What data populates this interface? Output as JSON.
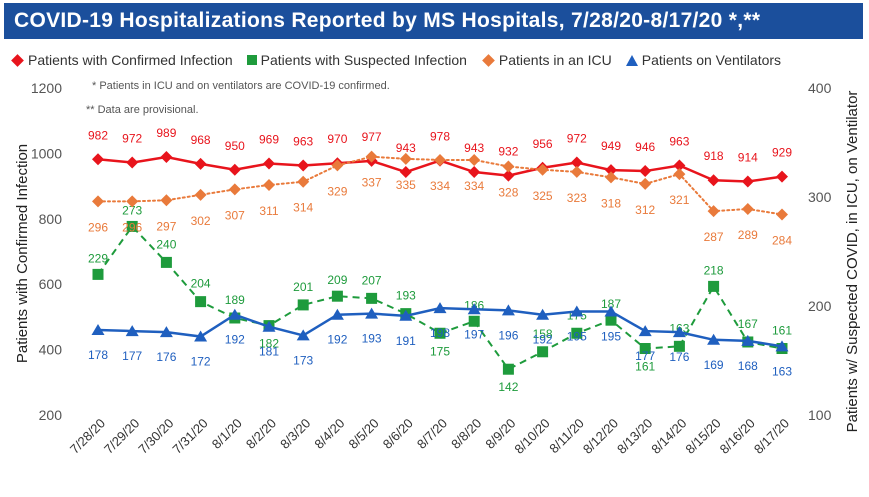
{
  "title": "COVID-19 Hospitalizations Reported by MS Hospitals, 7/28/20-8/17/20 *,**",
  "notes": [
    "* Patients in ICU and on ventilators are COVID-19 confirmed.",
    "** Data are provisional."
  ],
  "legend": [
    {
      "label": "Patients with Confirmed Infection",
      "color": "#e8141c",
      "marker": "diamond"
    },
    {
      "label": "Patients with Suspected Infection",
      "color": "#1e9b3c",
      "marker": "square"
    },
    {
      "label": "Patients in an ICU",
      "color": "#e97a3b",
      "marker": "diamond"
    },
    {
      "label": "Patients on Ventilators",
      "color": "#1f5fbf",
      "marker": "triangle"
    }
  ],
  "chart_data": {
    "type": "line",
    "title": "COVID-19 Hospitalizations Reported by MS Hospitals, 7/28/20-8/17/20 *,**",
    "categories": [
      "7/28/20",
      "7/29/20",
      "7/30/20",
      "7/31/20",
      "8/1/20",
      "8/2/20",
      "8/3/20",
      "8/4/20",
      "8/5/20",
      "8/6/20",
      "8/7/20",
      "8/8/20",
      "8/9/20",
      "8/10/20",
      "8/11/20",
      "8/12/20",
      "8/13/20",
      "8/14/20",
      "8/15/20",
      "8/16/20",
      "8/17/20"
    ],
    "ylabel": "Patients with Confirmed Infection",
    "y2label": "Patients w/ Suspected COVID, in ICU, on Ventilator",
    "ylim": [
      200,
      1200
    ],
    "y2lim": [
      100,
      400
    ],
    "yticks": [
      200,
      400,
      600,
      800,
      1000,
      1200
    ],
    "y2ticks": [
      100,
      200,
      300,
      400
    ],
    "grid": false,
    "legend_position": "top",
    "series": [
      {
        "name": "Patients with Confirmed Infection",
        "axis": "left",
        "color": "#e8141c",
        "style": "solid",
        "marker": "diamond",
        "values": [
          982,
          972,
          989,
          968,
          950,
          969,
          963,
          970,
          977,
          943,
          978,
          943,
          932,
          956,
          972,
          949,
          946,
          963,
          918,
          914,
          929
        ]
      },
      {
        "name": "Patients with Suspected Infection",
        "axis": "right",
        "color": "#1e9b3c",
        "style": "dashed",
        "marker": "square",
        "values": [
          229,
          273,
          240,
          204,
          189,
          182,
          201,
          209,
          207,
          193,
          175,
          186,
          142,
          158,
          175,
          187,
          161,
          163,
          218,
          167,
          161
        ]
      },
      {
        "name": "Patients in an ICU",
        "axis": "right",
        "color": "#e97a3b",
        "style": "dotted",
        "marker": "diamond",
        "values": [
          296,
          296,
          297,
          302,
          307,
          311,
          314,
          329,
          337,
          335,
          334,
          334,
          328,
          325,
          323,
          318,
          312,
          321,
          287,
          289,
          284
        ]
      },
      {
        "name": "Patients on Ventilators",
        "axis": "right",
        "color": "#1f5fbf",
        "style": "solid",
        "marker": "triangle",
        "values": [
          178,
          177,
          176,
          172,
          192,
          181,
          173,
          192,
          193,
          191,
          198,
          197,
          196,
          192,
          195,
          195,
          177,
          176,
          169,
          168,
          163
        ]
      }
    ]
  }
}
